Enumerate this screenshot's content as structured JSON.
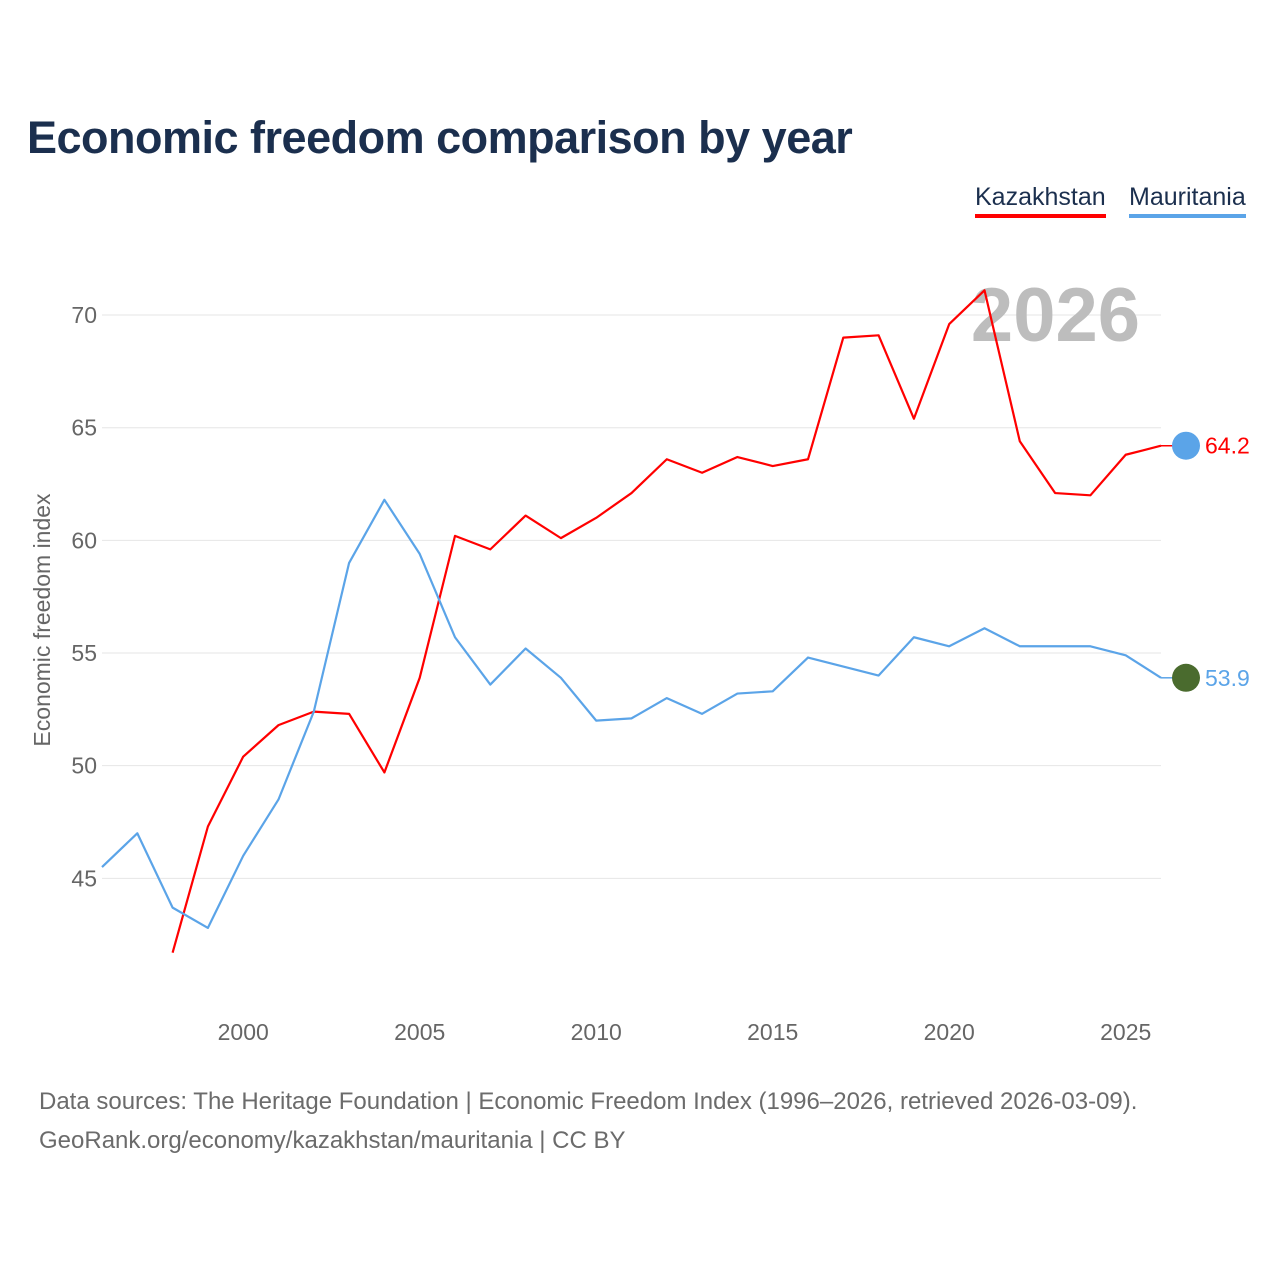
{
  "chart_data": {
    "type": "line",
    "title": "Economic freedom comparison by year",
    "xlabel": "",
    "ylabel": "Economic freedom index",
    "xlim": [
      1996,
      2026
    ],
    "ylim": [
      39.6,
      72
    ],
    "xticks": [
      2000,
      2005,
      2010,
      2015,
      2020,
      2025
    ],
    "yticks": [
      45,
      50,
      55,
      60,
      65,
      70
    ],
    "grid": true,
    "legend_position": "top-right",
    "year_watermark": "2026",
    "series": [
      {
        "name": "Kazakhstan",
        "color": "#ff0000",
        "end_label": "64.2",
        "x": [
          1998,
          1999,
          2000,
          2001,
          2002,
          2003,
          2004,
          2005,
          2006,
          2007,
          2008,
          2009,
          2010,
          2011,
          2012,
          2013,
          2014,
          2015,
          2016,
          2017,
          2018,
          2019,
          2020,
          2021,
          2022,
          2023,
          2024,
          2025,
          2026
        ],
        "values": [
          41.7,
          47.3,
          50.4,
          51.8,
          52.4,
          52.3,
          49.7,
          53.9,
          60.2,
          59.6,
          61.1,
          60.1,
          61.0,
          62.1,
          63.6,
          63.0,
          63.7,
          63.3,
          63.6,
          69.0,
          69.1,
          65.4,
          69.6,
          71.1,
          64.4,
          62.1,
          62.0,
          63.8,
          64.2
        ]
      },
      {
        "name": "Mauritania",
        "color": "#5ba4e8",
        "end_label": "53.9",
        "x": [
          1996,
          1997,
          1998,
          1999,
          2000,
          2001,
          2002,
          2003,
          2004,
          2005,
          2006,
          2007,
          2008,
          2009,
          2010,
          2011,
          2012,
          2013,
          2014,
          2015,
          2016,
          2017,
          2018,
          2019,
          2020,
          2021,
          2022,
          2023,
          2024,
          2025,
          2026
        ],
        "values": [
          45.5,
          47.0,
          43.7,
          42.8,
          46.0,
          48.5,
          52.4,
          59.0,
          61.8,
          59.4,
          55.7,
          53.6,
          55.2,
          53.9,
          52.0,
          52.1,
          53.0,
          52.3,
          53.2,
          53.3,
          54.8,
          54.4,
          54.0,
          55.7,
          55.3,
          56.1,
          55.3,
          55.3,
          55.3,
          54.9,
          53.9
        ]
      }
    ]
  },
  "footer": {
    "sources": "Data sources: The Heritage Foundation | Economic Freedom Index (1996–2026, retrieved 2026-03-09).",
    "credit": "GeoRank.org/economy/kazakhstan/mauritania | CC BY"
  }
}
